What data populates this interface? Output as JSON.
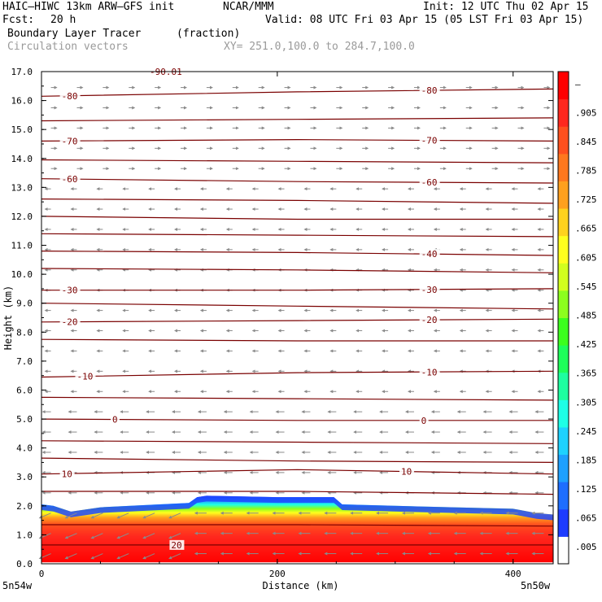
{
  "header": {
    "model": "HAIC–HIWC 13km ARW–GFS init",
    "org": "NCAR/MMM",
    "init": "Init: 12 UTC Thu 02 Apr 15",
    "fcst_label": "Fcst:",
    "fcst_value": "20 h",
    "valid": "Valid: 08 UTC Fri 03 Apr 15 (05 LST Fri 03 Apr 15)",
    "field": "Boundary Layer Tracer",
    "field_unit": "(fraction)",
    "vector_label": "Circulation vectors",
    "xy": "XY= 251.0,100.0 to 284.7,100.0"
  },
  "chart_data": {
    "type": "heatmap",
    "xlabel": "Distance (km)",
    "ylabel": "Height (km)",
    "xlim": [
      0,
      434
    ],
    "ylim": [
      0,
      17
    ],
    "xticks": [
      "0",
      "200",
      "400"
    ],
    "yticks": [
      "0.0",
      "1.0",
      "2.0",
      "3.0",
      "4.0",
      "5.0",
      "6.0",
      "7.0",
      "8.0",
      "9.0",
      "10.0",
      "11.0",
      "12.0",
      "13.0",
      "14.0",
      "15.0",
      "16.0",
      "17.0"
    ],
    "x_endpoints": [
      "5n54w",
      "5n50w"
    ],
    "colorbar": {
      "labels": [
        ".005",
        ".065",
        ".125",
        ".185",
        ".245",
        ".305",
        ".365",
        ".425",
        ".485",
        ".545",
        ".605",
        ".665",
        ".725",
        ".785",
        ".845",
        ".905",
        "–"
      ],
      "colors": [
        "#ffffff",
        "#1e3cff",
        "#1e6eff",
        "#1ea0ff",
        "#1ed2ff",
        "#1effe6",
        "#1effa0",
        "#1eff5a",
        "#3cff1e",
        "#8cff1e",
        "#d2ff1e",
        "#ffff1e",
        "#ffd21e",
        "#ffa01e",
        "#ff781e",
        "#ff501e",
        "#ff281e",
        "#ff0000"
      ]
    },
    "tracer_top_km": [
      {
        "x": 0,
        "y": 2.05
      },
      {
        "x": 10,
        "y": 2.0
      },
      {
        "x": 25,
        "y": 1.8
      },
      {
        "x": 50,
        "y": 1.95
      },
      {
        "x": 100,
        "y": 2.05
      },
      {
        "x": 125,
        "y": 2.1
      },
      {
        "x": 132,
        "y": 2.3
      },
      {
        "x": 140,
        "y": 2.35
      },
      {
        "x": 200,
        "y": 2.3
      },
      {
        "x": 248,
        "y": 2.3
      },
      {
        "x": 255,
        "y": 2.05
      },
      {
        "x": 300,
        "y": 2.0
      },
      {
        "x": 350,
        "y": 1.95
      },
      {
        "x": 400,
        "y": 1.9
      },
      {
        "x": 420,
        "y": 1.75
      },
      {
        "x": 434,
        "y": 1.7
      }
    ],
    "terrain_km": [
      {
        "x": 0,
        "y": 0.05
      },
      {
        "x": 200,
        "y": 0.05
      },
      {
        "x": 434,
        "y": 0.05
      }
    ],
    "contours": [
      {
        "label": "-80",
        "label_x": [
          17,
          322
        ],
        "y": [
          16.15,
          16.3,
          16.4
        ]
      },
      {
        "label": "",
        "label_x": [],
        "y": [
          15.3,
          15.35,
          15.4
        ]
      },
      {
        "label": "-70",
        "label_x": [
          17,
          322
        ],
        "y": [
          14.6,
          14.65,
          14.6
        ]
      },
      {
        "label": "",
        "label_x": [],
        "y": [
          13.95,
          13.9,
          13.85
        ]
      },
      {
        "label": "-60",
        "label_x": [
          17,
          322
        ],
        "y": [
          13.3,
          13.2,
          13.15
        ]
      },
      {
        "label": "",
        "label_x": [],
        "y": [
          12.6,
          12.55,
          12.45
        ]
      },
      {
        "label": "",
        "label_x": [],
        "y": [
          12.0,
          11.9,
          11.9
        ]
      },
      {
        "label": "",
        "label_x": [],
        "y": [
          11.4,
          11.35,
          11.3
        ]
      },
      {
        "label": "-40",
        "label_x": [
          322
        ],
        "y": [
          10.8,
          10.75,
          10.65
        ]
      },
      {
        "label": "",
        "label_x": [],
        "y": [
          10.2,
          10.15,
          10.05
        ]
      },
      {
        "label": "-30",
        "label_x": [
          17,
          322
        ],
        "y": [
          9.45,
          9.45,
          9.5
        ]
      },
      {
        "label": "",
        "label_x": [],
        "y": [
          9.0,
          8.9,
          8.8
        ]
      },
      {
        "label": "-20",
        "label_x": [
          17,
          322
        ],
        "y": [
          8.35,
          8.4,
          8.45
        ]
      },
      {
        "label": "",
        "label_x": [],
        "y": [
          7.75,
          7.7,
          7.7
        ]
      },
      {
        "label": "-10",
        "label_x": [
          30,
          322
        ],
        "y": [
          6.45,
          6.6,
          6.65
        ]
      },
      {
        "label": "",
        "label_x": [],
        "y": [
          5.75,
          5.7,
          5.65
        ]
      },
      {
        "label": "0",
        "label_x": [
          60,
          322
        ],
        "y": [
          5.0,
          4.95,
          4.95
        ]
      },
      {
        "label": "",
        "label_x": [],
        "y": [
          4.25,
          4.2,
          4.15
        ]
      },
      {
        "label": "",
        "label_x": [],
        "y": [
          3.65,
          3.55,
          3.5
        ]
      },
      {
        "label": "10",
        "label_x": [
          17,
          305
        ],
        "y": [
          3.1,
          3.25,
          3.1
        ]
      },
      {
        "label": "",
        "label_x": [],
        "y": [
          2.5,
          2.5,
          2.4
        ]
      },
      {
        "label": "",
        "label_x": [],
        "y": [
          1.35,
          1.35,
          1.3
        ]
      },
      {
        "label": "20",
        "label_x": [
          110
        ],
        "y": [
          0.65,
          0.65,
          0.65
        ]
      }
    ],
    "top_fragment_label": "-90.01"
  }
}
